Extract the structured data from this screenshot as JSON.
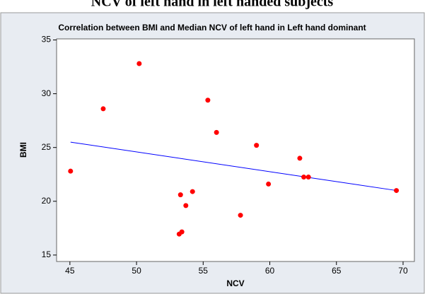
{
  "header": "NCV of left hand in left handed subjects",
  "chart_data": {
    "type": "scatter",
    "title": "Correlation between BMI and Median NCV of left hand in Left hand dominant",
    "x_label": "NCV",
    "y_label": "BMI",
    "xlim": [
      44,
      70.85
    ],
    "ylim": [
      14.4,
      35.1
    ],
    "xticks": [
      45,
      50,
      55,
      60,
      65,
      70
    ],
    "yticks": [
      15,
      20,
      25,
      30,
      35
    ],
    "series": [
      {
        "color": "#ff0000",
        "x": [
          45.05,
          47.5,
          50.2,
          53.3,
          53.2,
          53.4,
          53.7,
          54.2,
          55.35,
          56.0,
          57.8,
          59.0,
          59.9,
          62.25,
          62.55,
          62.9,
          69.5
        ],
        "values": [
          22.8,
          28.6,
          32.8,
          20.6,
          16.95,
          17.15,
          19.6,
          20.9,
          29.4,
          26.4,
          18.7,
          25.2,
          21.6,
          24.0,
          22.25,
          22.25,
          21.0
        ]
      }
    ],
    "trend_line": {
      "color": "#0000ff",
      "x": [
        45.05,
        69.5
      ],
      "y": [
        25.5,
        21.0
      ]
    }
  }
}
